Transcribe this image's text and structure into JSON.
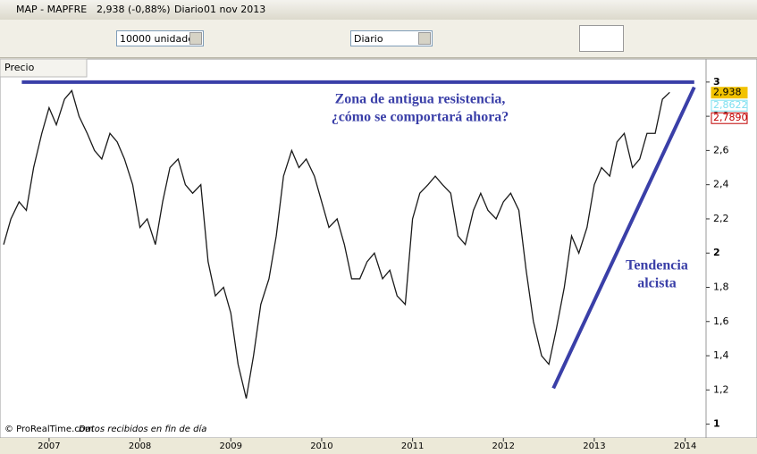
{
  "window": {
    "symbol": "MAP - MAPFRE",
    "quote": "2,938 (-0,88%)",
    "period": "Diario",
    "date": "01 nov 2013"
  },
  "toolbar": {
    "units": "10000 unidades",
    "period": "Diario"
  },
  "panel": {
    "label": "Precio"
  },
  "footer": {
    "copyright": "© ProRealTime.com",
    "note": "Datos recibidos en fin de día"
  },
  "chart_data": {
    "type": "line",
    "x": [
      2006.5,
      2006.58,
      2006.67,
      2006.75,
      2006.83,
      2006.92,
      2007.0,
      2007.08,
      2007.17,
      2007.25,
      2007.33,
      2007.42,
      2007.5,
      2007.58,
      2007.67,
      2007.75,
      2007.83,
      2007.92,
      2008.0,
      2008.08,
      2008.17,
      2008.25,
      2008.33,
      2008.42,
      2008.5,
      2008.58,
      2008.67,
      2008.75,
      2008.83,
      2008.92,
      2009.0,
      2009.08,
      2009.17,
      2009.25,
      2009.33,
      2009.42,
      2009.5,
      2009.58,
      2009.67,
      2009.75,
      2009.83,
      2009.92,
      2010.0,
      2010.08,
      2010.17,
      2010.25,
      2010.33,
      2010.42,
      2010.5,
      2010.58,
      2010.67,
      2010.75,
      2010.83,
      2010.92,
      2011.0,
      2011.08,
      2011.17,
      2011.25,
      2011.33,
      2011.42,
      2011.5,
      2011.58,
      2011.67,
      2011.75,
      2011.83,
      2011.92,
      2012.0,
      2012.08,
      2012.17,
      2012.25,
      2012.33,
      2012.42,
      2012.5,
      2012.58,
      2012.67,
      2012.75,
      2012.83,
      2012.92,
      2013.0,
      2013.08,
      2013.17,
      2013.25,
      2013.33,
      2013.42,
      2013.5,
      2013.58,
      2013.67,
      2013.75,
      2013.83
    ],
    "series": [
      {
        "color": "#1a1a1a",
        "values": [
          2.05,
          2.2,
          2.3,
          2.25,
          2.5,
          2.7,
          2.85,
          2.75,
          2.9,
          2.95,
          2.8,
          2.7,
          2.6,
          2.55,
          2.7,
          2.65,
          2.55,
          2.4,
          2.15,
          2.2,
          2.05,
          2.3,
          2.5,
          2.55,
          2.4,
          2.35,
          2.4,
          1.95,
          1.75,
          1.8,
          1.65,
          1.35,
          1.15,
          1.4,
          1.7,
          1.85,
          2.1,
          2.45,
          2.6,
          2.5,
          2.55,
          2.45,
          2.3,
          2.15,
          2.2,
          2.05,
          1.85,
          1.85,
          1.95,
          2.0,
          1.85,
          1.9,
          1.75,
          1.7,
          2.2,
          2.35,
          2.4,
          2.45,
          2.4,
          2.35,
          2.1,
          2.05,
          2.25,
          2.35,
          2.25,
          2.2,
          2.3,
          2.35,
          2.25,
          1.9,
          1.6,
          1.4,
          1.35,
          1.55,
          1.8,
          2.1,
          2.0,
          2.15,
          2.4,
          2.5,
          2.45,
          2.65,
          2.7,
          2.5,
          2.55,
          2.7,
          2.7,
          2.9,
          2.94
        ]
      }
    ],
    "last_labels": [
      {
        "value": 2.938,
        "label": "2,938",
        "color": "#f2c200"
      },
      {
        "value": 2.8622,
        "label": "2,8622",
        "color": "#7fe0f0"
      },
      {
        "value": 2.789,
        "label": "2,7890",
        "color": "#c00000"
      }
    ],
    "trend_lines": [
      {
        "x": [
          2006.7,
          2014.1
        ],
        "y": [
          3,
          3
        ],
        "color": "#3a3fa8"
      },
      {
        "x": [
          2012.55,
          2014.1
        ],
        "y": [
          1.21,
          2.97
        ],
        "color": "#3a3fa8"
      }
    ],
    "annotations": [
      [
        "Zona de antigua resistencia,",
        "¿cómo se comportará ahora?"
      ],
      [
        "Tendencia",
        "alcista"
      ]
    ],
    "xlim": [
      2006.46,
      2014.23
    ],
    "xticks": [
      2007,
      2008,
      2009,
      2010,
      2011,
      2012,
      2013,
      2014
    ],
    "ylim": [
      0.93,
      3.02
    ],
    "yticks": [
      1,
      {
        "value": 1.2,
        "label": "1,2"
      },
      {
        "value": 1.4,
        "label": "1,4"
      },
      {
        "value": 1.6,
        "label": "1,6"
      },
      {
        "value": 1.8,
        "label": "1,8"
      },
      2,
      {
        "value": 2.2,
        "label": "2,2"
      },
      {
        "value": 2.4,
        "label": "2,4"
      },
      {
        "value": 2.6,
        "label": "2,6"
      },
      {
        "value": 2.8,
        "label": "2,8"
      },
      3
    ],
    "grid": false
  }
}
